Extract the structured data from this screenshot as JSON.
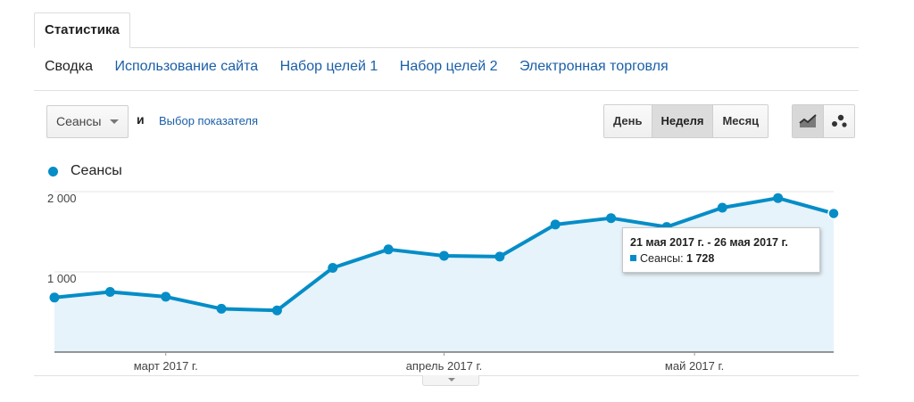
{
  "tabs": {
    "active_label": "Статистика"
  },
  "subnav": {
    "items": [
      {
        "label": "Сводка",
        "active": true
      },
      {
        "label": "Использование сайта",
        "active": false
      },
      {
        "label": "Набор целей 1",
        "active": false
      },
      {
        "label": "Набор целей 2",
        "active": false
      },
      {
        "label": "Электронная торговля",
        "active": false
      }
    ]
  },
  "controls": {
    "metric_select": "Сеансы",
    "and_text": "и",
    "choose_metric_link": "Выбор показателя",
    "periods": [
      {
        "label": "День",
        "active": false
      },
      {
        "label": "Неделя",
        "active": true
      },
      {
        "label": "Месяц",
        "active": false
      }
    ],
    "views": [
      {
        "icon": "line-chart-icon",
        "active": true
      },
      {
        "icon": "motion-chart-icon",
        "active": false
      }
    ]
  },
  "tooltip": {
    "title": "21 мая 2017 г. - 26 мая 2017 г.",
    "series_label": "Сеансы:",
    "value": "1 728"
  },
  "chart_data": {
    "type": "area",
    "series": [
      {
        "name": "Сеансы",
        "color": "#058dc7",
        "values": [
          680,
          750,
          690,
          540,
          520,
          1050,
          1280,
          1200,
          1190,
          1590,
          1670,
          1560,
          1800,
          1920,
          1728
        ]
      }
    ],
    "y_ticks": [
      {
        "value": 1000,
        "label": "1 000"
      },
      {
        "value": 2000,
        "label": "2 000"
      }
    ],
    "x_ticks": [
      {
        "label": "март 2017 г.",
        "index": 2
      },
      {
        "label": "апрель 2017 г.",
        "index": 7
      },
      {
        "label": "май 2017 г.",
        "index": 11.5
      }
    ],
    "ylim": [
      0,
      2000
    ],
    "highlighted_index": 14,
    "legend": "top-left"
  }
}
